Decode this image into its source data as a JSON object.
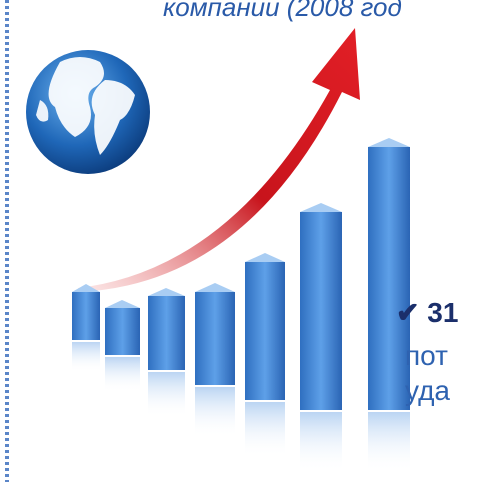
{
  "slide": {
    "title_fragment": "компании (2008 год",
    "bullet": {
      "marker": "✔",
      "text": "31"
    },
    "lines": [
      "пот",
      "уда"
    ]
  }
}
